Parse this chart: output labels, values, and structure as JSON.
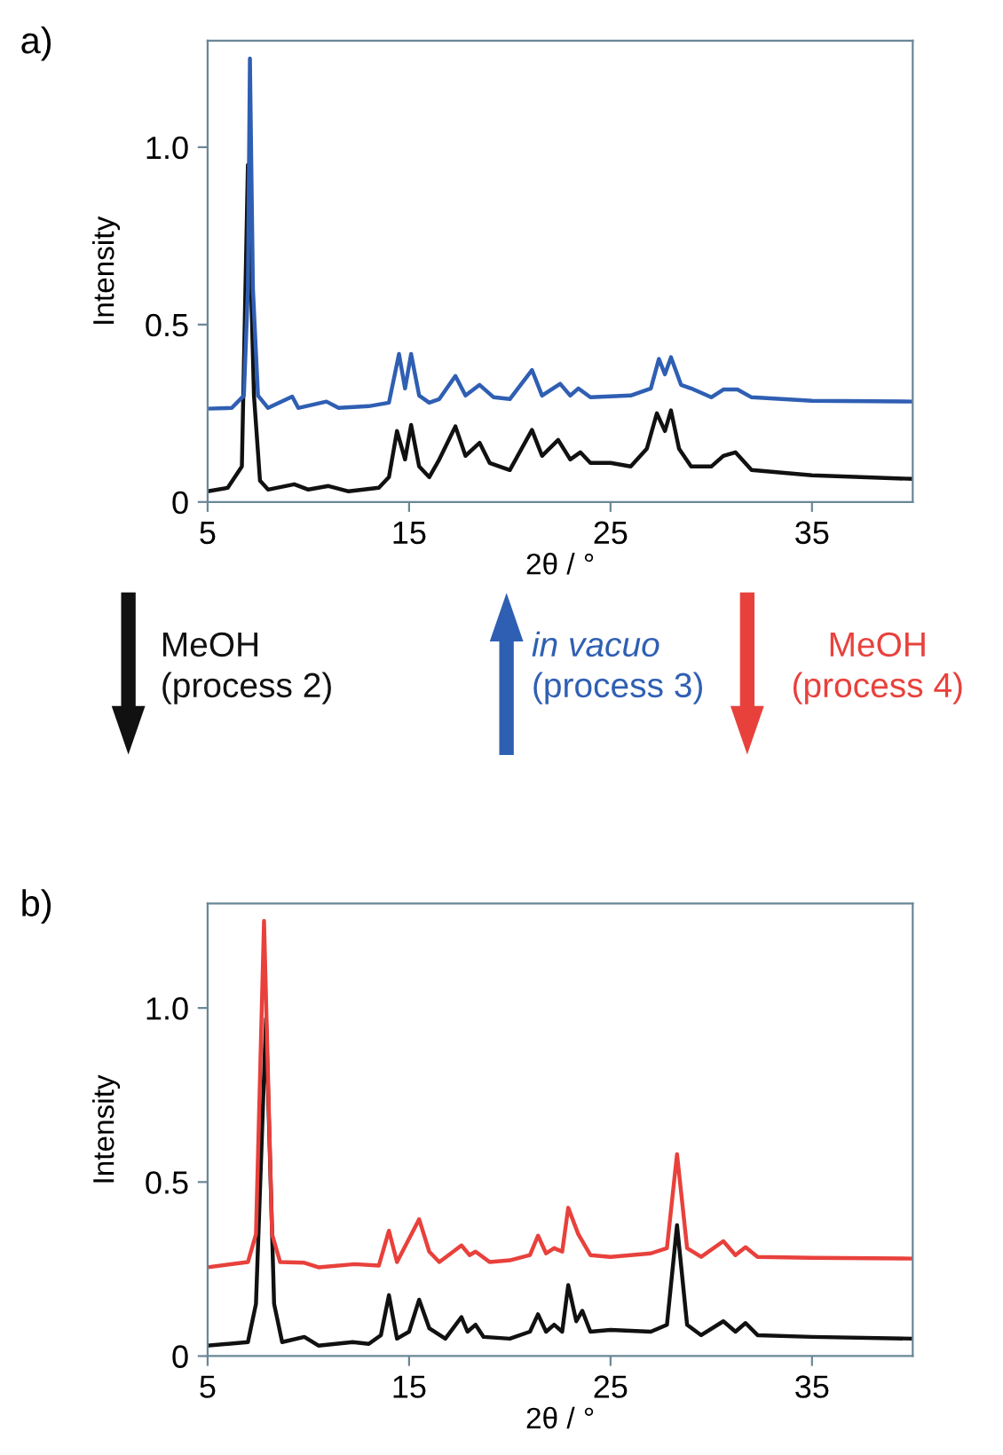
{
  "chart_data": [
    {
      "type": "line",
      "title": "a)",
      "xlabel": "2θ / °",
      "ylabel": "Intensity",
      "xlim": [
        5,
        40
      ],
      "ylim": [
        0,
        1.3
      ],
      "xticks": [
        5,
        15,
        25,
        35
      ],
      "yticks": [
        0,
        0.5,
        {
          "value": 1,
          "label": "1.0"
        }
      ],
      "annotations": [
        "MeOH",
        "(process 2)",
        "in vacuo",
        "(process 3)"
      ],
      "series": [
        {
          "color": "#111111",
          "x": [
            5,
            6,
            6.7,
            7.0,
            7.3,
            7.6,
            8,
            9.3,
            10,
            11,
            12,
            13.5,
            14.0,
            14.4,
            14.8,
            15.1,
            15.5,
            16,
            16.5,
            17.3,
            17.8,
            18.5,
            19,
            20,
            21.1,
            21.6,
            22.4,
            23,
            23.5,
            24,
            25,
            26,
            26.8,
            27.3,
            27.7,
            28.0,
            28.4,
            29,
            30,
            30.6,
            31.2,
            32,
            35,
            40
          ],
          "values": [
            0.03,
            0.04,
            0.1,
            0.95,
            0.3,
            0.06,
            0.035,
            0.05,
            0.035,
            0.045,
            0.03,
            0.04,
            0.07,
            0.2,
            0.12,
            0.217,
            0.1,
            0.07,
            0.12,
            0.213,
            0.13,
            0.167,
            0.11,
            0.09,
            0.203,
            0.13,
            0.175,
            0.12,
            0.14,
            0.11,
            0.11,
            0.1,
            0.15,
            0.25,
            0.2,
            0.258,
            0.15,
            0.1,
            0.1,
            0.13,
            0.14,
            0.09,
            0.075,
            0.065
          ]
        },
        {
          "color": "#2f5fb3",
          "x": [
            5,
            6.2,
            6.8,
            7.0,
            7.1,
            7.25,
            7.5,
            8,
            9.2,
            9.5,
            10.9,
            11.5,
            13,
            14.0,
            14.5,
            14.8,
            15.1,
            15.5,
            16,
            16.5,
            17.3,
            17.8,
            18.5,
            19.2,
            20,
            21.1,
            21.6,
            22.5,
            23,
            23.4,
            24,
            26,
            27,
            27.4,
            27.7,
            28.0,
            28.5,
            29,
            30,
            30.6,
            31.3,
            32,
            35,
            40
          ],
          "values": [
            0.263,
            0.265,
            0.3,
            0.6,
            1.25,
            0.6,
            0.3,
            0.265,
            0.297,
            0.265,
            0.283,
            0.265,
            0.27,
            0.28,
            0.417,
            0.32,
            0.417,
            0.3,
            0.28,
            0.29,
            0.355,
            0.3,
            0.33,
            0.295,
            0.29,
            0.372,
            0.3,
            0.333,
            0.3,
            0.32,
            0.295,
            0.3,
            0.32,
            0.403,
            0.36,
            0.408,
            0.33,
            0.32,
            0.295,
            0.317,
            0.317,
            0.295,
            0.285,
            0.283
          ]
        }
      ]
    },
    {
      "type": "line",
      "title": "b)",
      "xlabel": "2θ / °",
      "ylabel": "Intensity",
      "xlim": [
        5,
        40
      ],
      "ylim": [
        0,
        1.3
      ],
      "xticks": [
        5,
        15,
        25,
        35
      ],
      "yticks": [
        0,
        0.5,
        {
          "value": 1,
          "label": "1.0"
        }
      ],
      "annotations": [
        "MeOH",
        "(process 4)"
      ],
      "series": [
        {
          "color": "#111111",
          "x": [
            5,
            7,
            7.4,
            7.9,
            8.3,
            8.7,
            9.8,
            10.5,
            12.2,
            13,
            13.6,
            14.0,
            14.4,
            15.0,
            15.5,
            16,
            16.8,
            17.6,
            17.9,
            18.3,
            18.7,
            20,
            21.0,
            21.4,
            21.8,
            22.2,
            22.6,
            22.9,
            23.3,
            23.6,
            24,
            25,
            27,
            27.8,
            28.3,
            28.8,
            29.5,
            30.6,
            31.2,
            31.7,
            32.3,
            35,
            40
          ],
          "values": [
            0.03,
            0.04,
            0.15,
            0.97,
            0.15,
            0.04,
            0.055,
            0.03,
            0.04,
            0.035,
            0.06,
            0.175,
            0.05,
            0.07,
            0.162,
            0.08,
            0.05,
            0.112,
            0.07,
            0.09,
            0.055,
            0.05,
            0.07,
            0.12,
            0.07,
            0.09,
            0.07,
            0.204,
            0.1,
            0.13,
            0.07,
            0.075,
            0.07,
            0.09,
            0.376,
            0.09,
            0.06,
            0.1,
            0.07,
            0.095,
            0.06,
            0.055,
            0.05
          ]
        },
        {
          "color": "#e8413c",
          "x": [
            5,
            7,
            7.4,
            7.8,
            8.2,
            8.6,
            9.8,
            10.5,
            12.3,
            13.5,
            14.0,
            14.4,
            15.5,
            16,
            16.5,
            17.6,
            18,
            18.3,
            19,
            20,
            21,
            21.4,
            21.8,
            22.2,
            22.6,
            22.9,
            23.4,
            24,
            25,
            27,
            27.8,
            28.3,
            28.8,
            29.5,
            30.6,
            31.2,
            31.7,
            32.3,
            35,
            40
          ],
          "values": [
            0.255,
            0.27,
            0.35,
            1.25,
            0.35,
            0.27,
            0.268,
            0.255,
            0.264,
            0.26,
            0.36,
            0.27,
            0.393,
            0.3,
            0.27,
            0.318,
            0.29,
            0.3,
            0.27,
            0.275,
            0.29,
            0.346,
            0.295,
            0.31,
            0.3,
            0.426,
            0.35,
            0.29,
            0.285,
            0.295,
            0.31,
            0.58,
            0.31,
            0.285,
            0.33,
            0.29,
            0.313,
            0.285,
            0.282,
            0.28
          ]
        }
      ]
    }
  ]
}
